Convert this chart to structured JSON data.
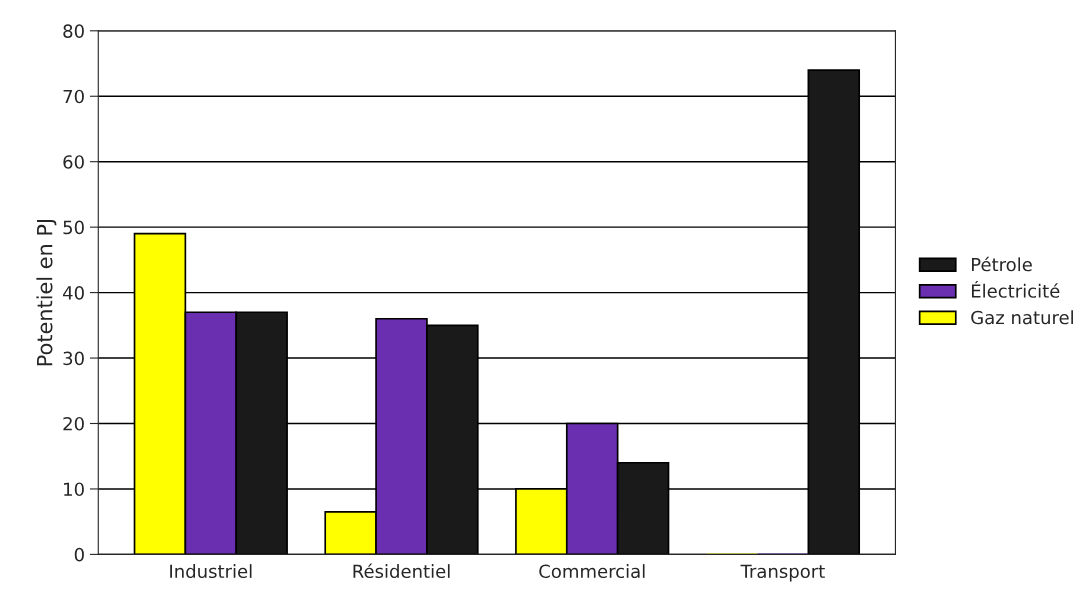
{
  "chart_data": {
    "type": "bar",
    "ylabel": "Potentiel en PJ",
    "categories": [
      "Industriel",
      "Résidentiel",
      "Commercial",
      "Transport"
    ],
    "series": [
      {
        "name": "Gaz naturel",
        "color": "#ffff00",
        "values": [
          49,
          6.5,
          10,
          0
        ]
      },
      {
        "name": "Électricité",
        "color": "#6a2fb0",
        "values": [
          37,
          36,
          20,
          0
        ]
      },
      {
        "name": "Pétrole",
        "color": "#1a1a1a",
        "values": [
          37,
          35,
          14,
          74
        ]
      }
    ],
    "ylim": [
      0,
      80
    ],
    "yticks": [
      0,
      10,
      20,
      30,
      40,
      50,
      60,
      70,
      80
    ],
    "grid": "y",
    "legend": "right"
  }
}
